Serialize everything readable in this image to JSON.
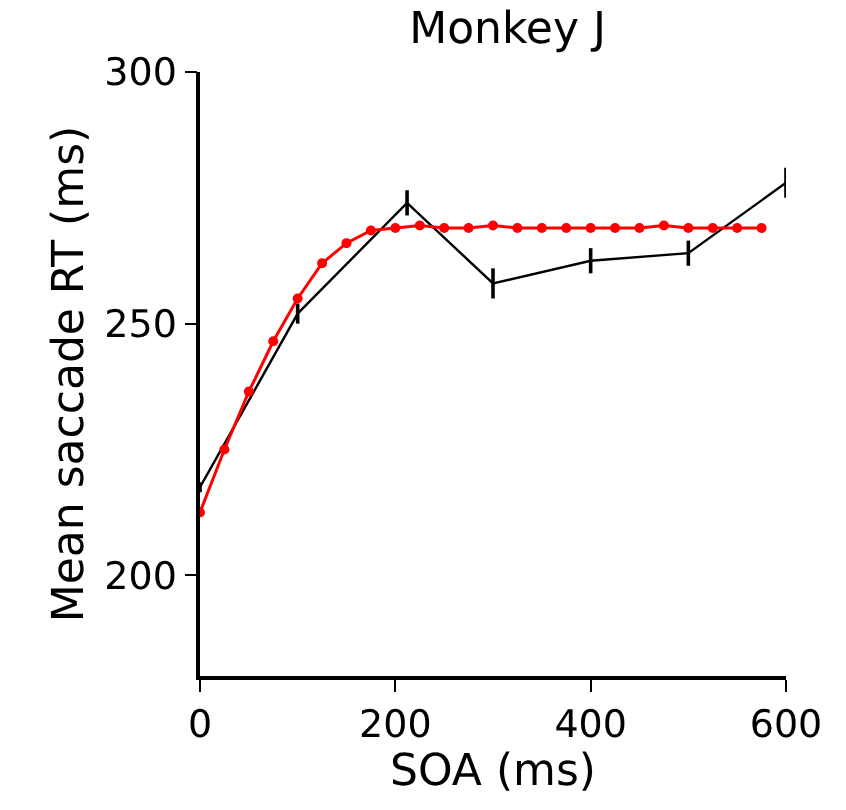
{
  "chart_data": {
    "type": "line",
    "title": "Monkey J",
    "xlabel": "SOA (ms)",
    "ylabel": "Mean saccade RT (ms)",
    "xlim": [
      0,
      600
    ],
    "xticks": [
      0,
      200,
      400,
      600
    ],
    "ylim": [
      180,
      300
    ],
    "yticks": [
      200,
      250,
      300
    ],
    "series": [
      {
        "color": "#000000",
        "marker": "none",
        "x": [
          0,
          100,
          212,
          300,
          400,
          500,
          600
        ],
        "values": [
          217.5,
          252,
          274,
          258,
          262.5,
          264,
          278
        ],
        "errors": [
          1,
          2,
          2.5,
          3,
          2.5,
          2.5,
          3
        ]
      },
      {
        "color": "#ff0000",
        "marker": "circle",
        "x": [
          0,
          25,
          50,
          75,
          100,
          125,
          150,
          175,
          200,
          225,
          250,
          275,
          300,
          325,
          350,
          375,
          400,
          425,
          450,
          475,
          500,
          525,
          550,
          575
        ],
        "values": [
          212.5,
          225,
          236.5,
          246.5,
          255,
          262,
          266,
          268.5,
          269,
          269.5,
          269,
          269,
          269.5,
          269,
          269,
          269,
          269,
          269,
          269,
          269.5,
          269,
          269,
          269,
          269
        ]
      }
    ]
  }
}
